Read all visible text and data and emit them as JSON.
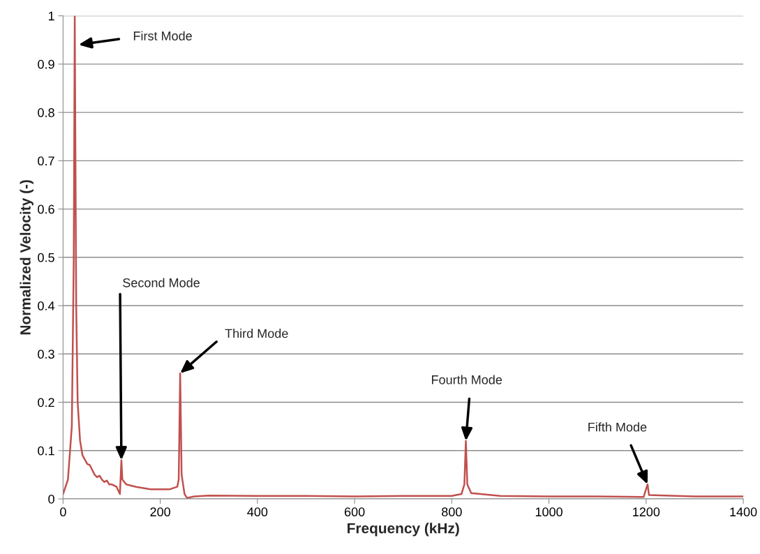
{
  "chart_data": {
    "type": "line",
    "xlabel": "Frequency (kHz)",
    "ylabel": "Normalized Velocity (-)",
    "x": [
      0,
      10,
      18,
      22,
      24,
      27,
      30,
      35,
      40,
      50,
      55,
      60,
      65,
      70,
      75,
      80,
      85,
      90,
      95,
      100,
      110,
      117,
      120,
      122,
      130,
      150,
      180,
      220,
      235,
      238,
      241,
      244,
      250,
      255,
      270,
      300,
      400,
      500,
      600,
      700,
      800,
      820,
      826,
      829,
      832,
      840,
      900,
      1000,
      1100,
      1195,
      1203,
      1206,
      1300,
      1400
    ],
    "series": [
      {
        "color": "#c0504d",
        "values": [
          0.01,
          0.04,
          0.15,
          0.5,
          1.0,
          0.4,
          0.2,
          0.12,
          0.09,
          0.072,
          0.07,
          0.06,
          0.05,
          0.045,
          0.048,
          0.04,
          0.035,
          0.038,
          0.03,
          0.03,
          0.025,
          0.01,
          0.08,
          0.04,
          0.03,
          0.025,
          0.02,
          0.02,
          0.025,
          0.04,
          0.26,
          0.05,
          0.01,
          0.002,
          0.005,
          0.007,
          0.006,
          0.006,
          0.005,
          0.006,
          0.006,
          0.01,
          0.03,
          0.12,
          0.03,
          0.012,
          0.006,
          0.005,
          0.005,
          0.004,
          0.03,
          0.008,
          0.005,
          0.005
        ]
      }
    ],
    "xlim": [
      0,
      1400
    ],
    "xticks": [
      0,
      200,
      400,
      600,
      800,
      1000,
      1200,
      1400
    ],
    "ylim": [
      0,
      1
    ],
    "yticks": [
      0,
      0.1,
      0.2,
      0.3,
      0.4,
      0.5,
      0.6,
      0.7,
      0.8,
      0.9,
      1
    ],
    "grid": "y",
    "marker": "none",
    "line_style": "solid",
    "legend": false,
    "annotations": [
      {
        "text": "First Mode",
        "x": 32,
        "y": 0.94
      },
      {
        "text": "Second Mode",
        "x": 120,
        "y": 0.08
      },
      {
        "text": "Third Mode",
        "x": 241,
        "y": 0.26
      },
      {
        "text": "Fourth Mode",
        "x": 829,
        "y": 0.12
      },
      {
        "text": "Fifth Mode",
        "x": 1203,
        "y": 0.03
      }
    ]
  }
}
